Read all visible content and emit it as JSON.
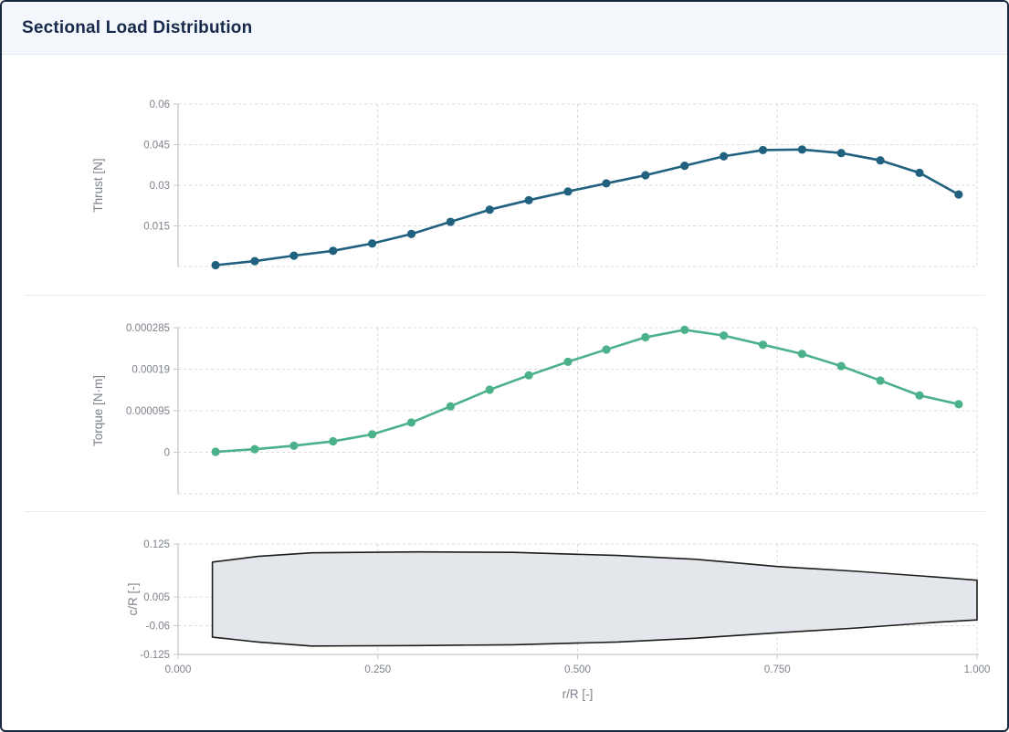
{
  "header": {
    "title": "Sectional Load Distribution"
  },
  "colors": {
    "window_border": "#16293e",
    "header_bg": "#f4f8fc",
    "title_text": "#17294b",
    "thrust_line": "#20617f",
    "torque_line": "#4bb18a",
    "planform_fill": "#e3e6ea",
    "planform_stroke": "#1c1c1c",
    "grid_line": "#d8d8d8",
    "axis_line": "#c4c8cd",
    "tick_text": "#7d828c"
  },
  "chart_data": [
    {
      "type": "line",
      "name": "thrust-distribution",
      "ylabel": "Thrust [N]",
      "xlabel": "",
      "xlim": [
        0,
        1
      ],
      "ylim": [
        0,
        0.06
      ],
      "grid": true,
      "legend": "none",
      "yticks": [
        {
          "value": 0.06,
          "label": "0.06"
        },
        {
          "value": 0.045,
          "label": "0.045"
        },
        {
          "value": 0.03,
          "label": "0.03"
        },
        {
          "value": 0.015,
          "label": "0.015"
        },
        {
          "value": 0,
          "label": ""
        }
      ],
      "xgrid": [
        0.25,
        0.5,
        0.75,
        1.0
      ],
      "x": [
        0.047,
        0.096,
        0.145,
        0.194,
        0.243,
        0.292,
        0.341,
        0.39,
        0.439,
        0.488,
        0.536,
        0.585,
        0.634,
        0.683,
        0.732,
        0.781,
        0.83,
        0.879,
        0.928,
        0.977
      ],
      "values": [
        0.0005,
        0.002,
        0.004,
        0.0058,
        0.0085,
        0.012,
        0.0165,
        0.021,
        0.0245,
        0.0277,
        0.0307,
        0.0337,
        0.0372,
        0.0407,
        0.043,
        0.0432,
        0.0419,
        0.0392,
        0.0346,
        0.0266
      ]
    },
    {
      "type": "line",
      "name": "torque-distribution",
      "ylabel": "Torque [N·m]",
      "xlabel": "",
      "xlim": [
        0,
        1
      ],
      "ylim": [
        -9.5e-05,
        0.000285
      ],
      "grid": true,
      "legend": "none",
      "yticks": [
        {
          "value": 0.000285,
          "label": "0.000285"
        },
        {
          "value": 0.00019,
          "label": "0.00019"
        },
        {
          "value": 9.5e-05,
          "label": "0.000095"
        },
        {
          "value": 0,
          "label": "0"
        },
        {
          "value": -9.5e-05,
          "label": ""
        }
      ],
      "xgrid": [
        0.25,
        0.5,
        0.75,
        1.0
      ],
      "x": [
        0.047,
        0.096,
        0.145,
        0.194,
        0.243,
        0.292,
        0.341,
        0.39,
        0.439,
        0.488,
        0.536,
        0.585,
        0.634,
        0.683,
        0.732,
        0.781,
        0.83,
        0.879,
        0.928,
        0.977
      ],
      "values": [
        1e-06,
        7e-06,
        1.5e-05,
        2.5e-05,
        4.1e-05,
        6.8e-05,
        0.000105,
        0.000143,
        0.000176,
        0.000207,
        0.000235,
        0.000263,
        0.00028,
        0.000267,
        0.000246,
        0.000225,
        0.000197,
        0.000164,
        0.00013,
        0.00011
      ]
    },
    {
      "type": "area",
      "name": "blade-planform",
      "ylabel": "c/R [-]",
      "xlabel": "r/R [-]",
      "xlim": [
        0,
        1
      ],
      "ylim": [
        -0.125,
        0.125
      ],
      "grid": true,
      "legend": "none",
      "yticks": [
        {
          "value": 0.125,
          "label": "0.125"
        },
        {
          "value": 0.005,
          "label": "0.005"
        },
        {
          "value": -0.06,
          "label": "-0.06"
        },
        {
          "value": -0.125,
          "label": "-0.125"
        }
      ],
      "xgrid": [
        0.25,
        0.5,
        0.75,
        1.0
      ],
      "xticks": [
        {
          "value": 0.0,
          "label": "0.000"
        },
        {
          "value": 0.25,
          "label": "0.250"
        },
        {
          "value": 0.5,
          "label": "0.500"
        },
        {
          "value": 0.75,
          "label": "0.750"
        },
        {
          "value": 1.0,
          "label": "1.000"
        }
      ],
      "outline_top": [
        [
          0.043,
          0.084
        ],
        [
          0.1,
          0.097
        ],
        [
          0.167,
          0.105
        ],
        [
          0.3,
          0.107
        ],
        [
          0.42,
          0.106
        ],
        [
          0.55,
          0.099
        ],
        [
          0.65,
          0.09
        ],
        [
          0.75,
          0.074
        ],
        [
          0.85,
          0.063
        ],
        [
          0.95,
          0.05
        ],
        [
          1.0,
          0.043
        ]
      ],
      "outline_bottom": [
        [
          1.0,
          -0.047
        ],
        [
          0.95,
          -0.052
        ],
        [
          0.85,
          -0.065
        ],
        [
          0.75,
          -0.076
        ],
        [
          0.65,
          -0.088
        ],
        [
          0.55,
          -0.097
        ],
        [
          0.42,
          -0.103
        ],
        [
          0.3,
          -0.105
        ],
        [
          0.167,
          -0.106
        ],
        [
          0.1,
          -0.097
        ],
        [
          0.043,
          -0.086
        ]
      ]
    }
  ]
}
